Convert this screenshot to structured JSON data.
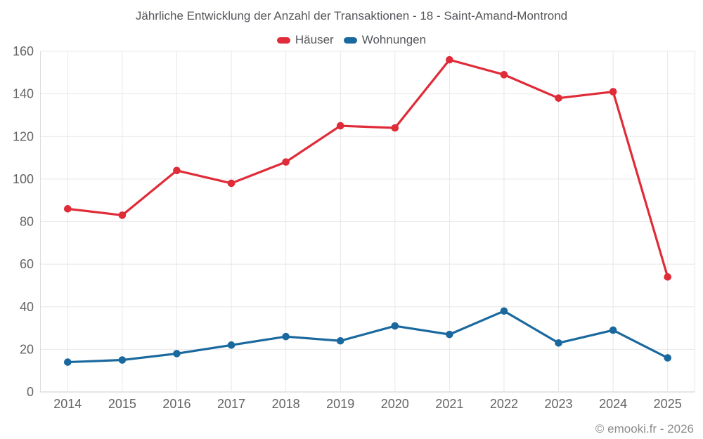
{
  "header": {
    "title": "Jährliche Entwicklung der Anzahl der Transaktionen - 18 - Saint-Amand-Montrond"
  },
  "chart_data": {
    "type": "line",
    "title": "Jährliche Entwicklung der Anzahl der Transaktionen - 18 - Saint-Amand-Montrond",
    "categories": [
      "2014",
      "2015",
      "2016",
      "2017",
      "2018",
      "2019",
      "2020",
      "2021",
      "2022",
      "2023",
      "2024",
      "2025"
    ],
    "series": [
      {
        "name": "Häuser",
        "color": "#e02b38",
        "values": [
          86,
          83,
          104,
          98,
          108,
          125,
          124,
          156,
          149,
          138,
          141,
          54
        ]
      },
      {
        "name": "Wohnungen",
        "color": "#1a699e",
        "values": [
          14,
          15,
          18,
          22,
          26,
          24,
          31,
          27,
          38,
          23,
          29,
          16
        ]
      }
    ],
    "xlabel": "",
    "ylabel": "",
    "ylim": [
      0,
      160
    ],
    "ytick_step": 20,
    "grid": true,
    "legend_position": "top"
  },
  "style": {
    "grid_color": "#e8e8e8",
    "axis_bottom_color": "#cccccc",
    "axis_left_color": "#dcdcdc",
    "tick_text_color": "#646464"
  },
  "footer": {
    "credit": "© emooki.fr - 2026"
  }
}
